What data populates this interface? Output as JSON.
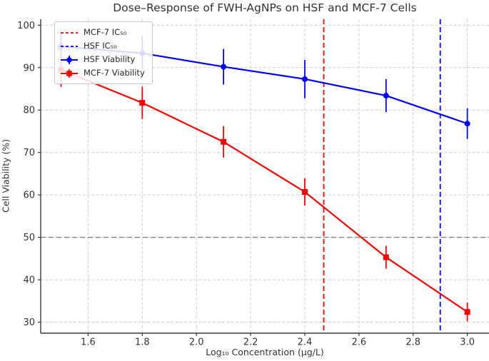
{
  "chart_data": {
    "type": "line",
    "title": "Dose–Response of FWH-AgNPs on HSF and MCF-7 Cells",
    "xlabel": "Log₁₀ Concentration (µg/L)",
    "ylabel": "Cell Viability (%)",
    "x": [
      1.5,
      1.8,
      2.1,
      2.4,
      2.7,
      3.0
    ],
    "series": [
      {
        "name": "HSF Viability",
        "color": "#0000ff",
        "marker": "circle",
        "values": [
          95.0,
          93.4,
          90.2,
          87.3,
          83.4,
          76.8
        ],
        "errors": [
          3.5,
          4.0,
          4.2,
          4.5,
          3.9,
          3.6
        ]
      },
      {
        "name": "MCF-7 Viability",
        "color": "#ff0000",
        "marker": "square",
        "values": [
          89.5,
          81.7,
          72.5,
          60.7,
          45.3,
          32.4
        ],
        "errors": [
          4.0,
          3.8,
          3.7,
          3.2,
          2.7,
          2.2
        ]
      }
    ],
    "vlines": [
      {
        "label": "MCF-7 IC₅₀",
        "x": 2.47,
        "color": "#ff0000",
        "style": "dashed"
      },
      {
        "label": "HSF IC₅₀",
        "x": 2.9,
        "color": "#0000ff",
        "style": "dashed"
      }
    ],
    "hlines": [
      {
        "y": 50,
        "color": "#7f7f7f",
        "style": "dashed"
      }
    ],
    "legend": [
      {
        "label": "MCF-7 IC₅₀",
        "type": "dashed-line",
        "color": "#ff0000"
      },
      {
        "label": "HSF IC₅₀",
        "type": "dashed-line",
        "color": "#0000ff"
      },
      {
        "label": "HSF Viability",
        "type": "marker-line",
        "marker": "circle",
        "color": "#0000ff"
      },
      {
        "label": "MCF-7 Viability",
        "type": "marker-line",
        "marker": "square",
        "color": "#ff0000"
      }
    ],
    "legend_position": "upper-left",
    "xticks": [
      1.6,
      1.8,
      2.0,
      2.2,
      2.4,
      2.6,
      2.8,
      3.0
    ],
    "yticks": [
      30,
      40,
      50,
      60,
      70,
      80,
      90,
      100
    ],
    "xlim": [
      1.425,
      3.08
    ],
    "ylim": [
      27.4,
      101.4
    ],
    "grid": true
  }
}
